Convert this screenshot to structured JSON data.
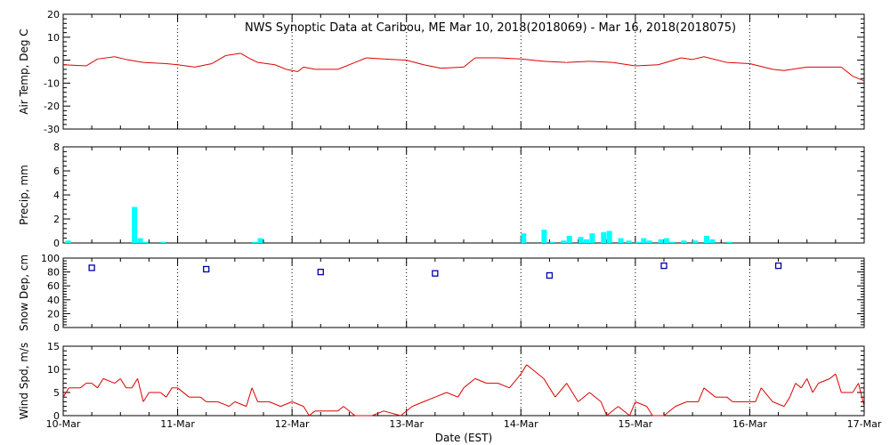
{
  "chart_data": {
    "type": "multi-panel time series",
    "title": "NWS Synoptic Data at Caribou, ME   Mar 10, 2018(2018069) - Mar 16, 2018(2018075)",
    "xlabel": "Date (EST)",
    "x_range_days": [
      0,
      7
    ],
    "x_tick_labels": [
      "10-Mar",
      "11-Mar",
      "12-Mar",
      "13-Mar",
      "14-Mar",
      "15-Mar",
      "16-Mar",
      "17-Mar"
    ],
    "grid": "vertical dotted at each day",
    "series_color": "#dd0000",
    "panels": [
      {
        "id": "air-temp",
        "type": "line",
        "ylabel": "Air Temp, Deg C",
        "ylim": [
          -30,
          20
        ],
        "y_tick_labels": [
          "20",
          "10",
          "0",
          "-10",
          "-20",
          "-30"
        ],
        "points": [
          [
            0.0,
            -2
          ],
          [
            0.2,
            -2.5
          ],
          [
            0.3,
            0.5
          ],
          [
            0.45,
            1.5
          ],
          [
            0.55,
            0.3
          ],
          [
            0.7,
            -1
          ],
          [
            0.9,
            -1.5
          ],
          [
            1.0,
            -2
          ],
          [
            1.15,
            -3
          ],
          [
            1.3,
            -1.5
          ],
          [
            1.42,
            2
          ],
          [
            1.55,
            3
          ],
          [
            1.62,
            1
          ],
          [
            1.7,
            -1
          ],
          [
            1.85,
            -2
          ],
          [
            1.95,
            -4
          ],
          [
            2.05,
            -5
          ],
          [
            2.1,
            -3
          ],
          [
            2.2,
            -4
          ],
          [
            2.4,
            -4
          ],
          [
            2.55,
            -1
          ],
          [
            2.65,
            1
          ],
          [
            2.8,
            0.5
          ],
          [
            3.0,
            0
          ],
          [
            3.15,
            -2
          ],
          [
            3.3,
            -3.5
          ],
          [
            3.5,
            -3
          ],
          [
            3.6,
            1
          ],
          [
            3.8,
            1
          ],
          [
            4.0,
            0.5
          ],
          [
            4.2,
            -0.5
          ],
          [
            4.4,
            -1
          ],
          [
            4.6,
            -0.5
          ],
          [
            4.8,
            -1
          ],
          [
            5.0,
            -2.5
          ],
          [
            5.2,
            -2
          ],
          [
            5.4,
            1
          ],
          [
            5.5,
            0.3
          ],
          [
            5.6,
            1.5
          ],
          [
            5.8,
            -1
          ],
          [
            6.0,
            -1.5
          ],
          [
            6.2,
            -4
          ],
          [
            6.3,
            -4.5
          ],
          [
            6.5,
            -3
          ],
          [
            6.8,
            -3
          ],
          [
            6.9,
            -7
          ],
          [
            7.0,
            -9
          ]
        ]
      },
      {
        "id": "precip",
        "type": "bar",
        "ylabel": "Precip, mm",
        "ylim": [
          0,
          8
        ],
        "y_tick_labels": [
          "8",
          "6",
          "4",
          "2",
          "0"
        ],
        "bars": [
          [
            0.02,
            0.2
          ],
          [
            0.6,
            3.0
          ],
          [
            0.65,
            0.4
          ],
          [
            0.7,
            0.1
          ],
          [
            0.85,
            0.1
          ],
          [
            1.65,
            0.1
          ],
          [
            1.7,
            0.4
          ],
          [
            4.0,
            0.8
          ],
          [
            4.18,
            1.1
          ],
          [
            4.25,
            0.1
          ],
          [
            4.35,
            0.2
          ],
          [
            4.4,
            0.6
          ],
          [
            4.5,
            0.5
          ],
          [
            4.55,
            0.3
          ],
          [
            4.6,
            0.8
          ],
          [
            4.7,
            0.9
          ],
          [
            4.75,
            1.0
          ],
          [
            4.85,
            0.4
          ],
          [
            4.92,
            0.2
          ],
          [
            5.0,
            0.1
          ],
          [
            5.05,
            0.4
          ],
          [
            5.1,
            0.2
          ],
          [
            5.2,
            0.3
          ],
          [
            5.25,
            0.4
          ],
          [
            5.3,
            0.1
          ],
          [
            5.4,
            0.2
          ],
          [
            5.5,
            0.2
          ],
          [
            5.6,
            0.6
          ],
          [
            5.65,
            0.3
          ],
          [
            5.8,
            0.1
          ]
        ]
      },
      {
        "id": "snow-depth",
        "type": "scatter",
        "ylabel": "Snow Dep, cm",
        "ylim": [
          0,
          100
        ],
        "y_tick_labels": [
          "100",
          "80",
          "60",
          "40",
          "20",
          "0"
        ],
        "points": [
          [
            0.25,
            86
          ],
          [
            1.25,
            84
          ],
          [
            2.25,
            80
          ],
          [
            3.25,
            78
          ],
          [
            4.25,
            75
          ],
          [
            5.25,
            89
          ],
          [
            6.25,
            89
          ]
        ]
      },
      {
        "id": "wind-speed",
        "type": "line",
        "ylabel": "Wind Spd, m/s",
        "ylim": [
          0,
          15
        ],
        "y_tick_labels": [
          "15",
          "10",
          "5",
          "0"
        ],
        "points": [
          [
            0.0,
            4
          ],
          [
            0.05,
            6
          ],
          [
            0.15,
            6
          ],
          [
            0.2,
            7
          ],
          [
            0.25,
            7
          ],
          [
            0.3,
            6
          ],
          [
            0.35,
            8
          ],
          [
            0.45,
            7
          ],
          [
            0.5,
            8
          ],
          [
            0.55,
            6
          ],
          [
            0.6,
            6
          ],
          [
            0.65,
            8
          ],
          [
            0.7,
            3
          ],
          [
            0.75,
            5
          ],
          [
            0.85,
            5
          ],
          [
            0.9,
            4
          ],
          [
            0.95,
            6
          ],
          [
            1.0,
            6
          ],
          [
            1.1,
            4
          ],
          [
            1.2,
            4
          ],
          [
            1.25,
            3
          ],
          [
            1.35,
            3
          ],
          [
            1.45,
            2
          ],
          [
            1.5,
            3
          ],
          [
            1.6,
            2
          ],
          [
            1.65,
            6
          ],
          [
            1.7,
            3
          ],
          [
            1.8,
            3
          ],
          [
            1.9,
            2
          ],
          [
            2.0,
            3
          ],
          [
            2.1,
            2
          ],
          [
            2.15,
            0
          ],
          [
            2.2,
            1
          ],
          [
            2.3,
            1
          ],
          [
            2.4,
            1
          ],
          [
            2.45,
            2
          ],
          [
            2.55,
            0
          ],
          [
            2.7,
            0
          ],
          [
            2.8,
            1
          ],
          [
            2.95,
            0
          ],
          [
            3.05,
            2
          ],
          [
            3.15,
            3
          ],
          [
            3.25,
            4
          ],
          [
            3.35,
            5
          ],
          [
            3.45,
            4
          ],
          [
            3.5,
            6
          ],
          [
            3.6,
            8
          ],
          [
            3.7,
            7
          ],
          [
            3.8,
            7
          ],
          [
            3.9,
            6
          ],
          [
            4.0,
            9
          ],
          [
            4.05,
            11
          ],
          [
            4.1,
            10
          ],
          [
            4.2,
            8
          ],
          [
            4.3,
            4
          ],
          [
            4.4,
            7
          ],
          [
            4.5,
            3
          ],
          [
            4.6,
            5
          ],
          [
            4.7,
            3
          ],
          [
            4.75,
            0
          ],
          [
            4.85,
            2
          ],
          [
            4.95,
            0
          ],
          [
            5.0,
            3
          ],
          [
            5.1,
            2
          ],
          [
            5.15,
            0
          ],
          [
            5.25,
            0
          ],
          [
            5.35,
            2
          ],
          [
            5.45,
            3
          ],
          [
            5.55,
            3
          ],
          [
            5.6,
            6
          ],
          [
            5.7,
            4
          ],
          [
            5.8,
            4
          ],
          [
            5.85,
            3
          ],
          [
            5.95,
            3
          ],
          [
            6.05,
            3
          ],
          [
            6.1,
            6
          ],
          [
            6.2,
            3
          ],
          [
            6.3,
            2
          ],
          [
            6.35,
            4
          ],
          [
            6.4,
            7
          ],
          [
            6.45,
            6
          ],
          [
            6.5,
            8
          ],
          [
            6.55,
            5
          ],
          [
            6.6,
            7
          ],
          [
            6.7,
            8
          ],
          [
            6.75,
            9
          ],
          [
            6.8,
            5
          ],
          [
            6.9,
            5
          ],
          [
            6.95,
            7
          ],
          [
            7.0,
            2
          ]
        ]
      }
    ]
  }
}
